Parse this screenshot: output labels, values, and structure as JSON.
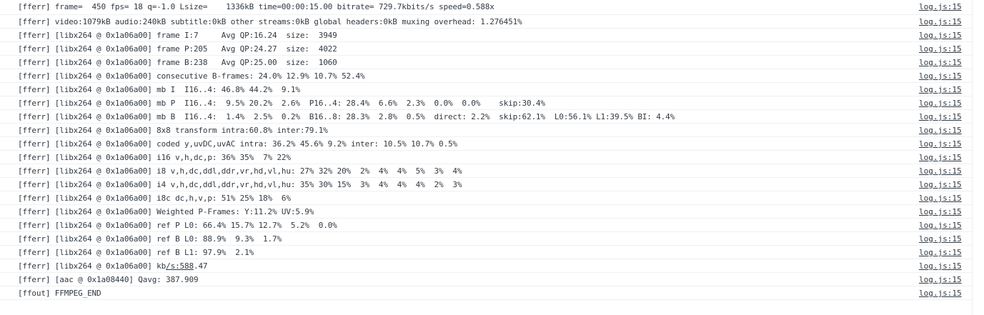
{
  "source_label": "log.js:15",
  "rows": [
    {
      "text": "[fferr] frame=  450 fps= 18 q=-1.0 Lsize=    1336kB time=00:00:15.00 bitrate= 729.7kbits/s speed=0.588x"
    },
    {
      "text": "[fferr] video:1079kB audio:240kB subtitle:0kB other streams:0kB global headers:0kB muxing overhead: 1.276451%"
    },
    {
      "text": "[fferr] [libx264 @ 0x1a06a00] frame I:7     Avg QP:16.24  size:  3949"
    },
    {
      "text": "[fferr] [libx264 @ 0x1a06a00] frame P:205   Avg QP:24.27  size:  4022"
    },
    {
      "text": "[fferr] [libx264 @ 0x1a06a00] frame B:238   Avg QP:25.00  size:  1060"
    },
    {
      "text": "[fferr] [libx264 @ 0x1a06a00] consecutive B-frames: 24.0% 12.9% 10.7% 52.4%"
    },
    {
      "text": "[fferr] [libx264 @ 0x1a06a00] mb I  I16..4: 46.8% 44.2%  9.1%"
    },
    {
      "text": "[fferr] [libx264 @ 0x1a06a00] mb P  I16..4:  9.5% 20.2%  2.6%  P16..4: 28.4%  6.6%  2.3%  0.0%  0.0%    skip:30.4%"
    },
    {
      "text": "[fferr] [libx264 @ 0x1a06a00] mb B  I16..4:  1.4%  2.5%  0.2%  B16..8: 28.3%  2.8%  0.5%  direct: 2.2%  skip:62.1%  L0:56.1% L1:39.5% BI: 4.4%"
    },
    {
      "text": "[fferr] [libx264 @ 0x1a06a00] 8x8 transform intra:60.8% inter:79.1%"
    },
    {
      "text": "[fferr] [libx264 @ 0x1a06a00] coded y,uvDC,uvAC intra: 36.2% 45.6% 9.2% inter: 10.5% 10.7% 0.5%"
    },
    {
      "text": "[fferr] [libx264 @ 0x1a06a00] i16 v,h,dc,p: 36% 35%  7% 22%"
    },
    {
      "text": "[fferr] [libx264 @ 0x1a06a00] i8 v,h,dc,ddl,ddr,vr,hd,vl,hu: 27% 32% 20%  2%  4%  4%  5%  3%  4%"
    },
    {
      "text": "[fferr] [libx264 @ 0x1a06a00] i4 v,h,dc,ddl,ddr,vr,hd,vl,hu: 35% 30% 15%  3%  4%  4%  4%  2%  3%"
    },
    {
      "text": "[fferr] [libx264 @ 0x1a06a00] i8c dc,h,v,p: 51% 25% 18%  6%"
    },
    {
      "text": "[fferr] [libx264 @ 0x1a06a00] Weighted P-Frames: Y:11.2% UV:5.9%"
    },
    {
      "text": "[fferr] [libx264 @ 0x1a06a00] ref P L0: 66.4% 15.7% 12.7%  5.2%  0.0%"
    },
    {
      "text": "[fferr] [libx264 @ 0x1a06a00] ref B L0: 88.9%  9.3%  1.7%"
    },
    {
      "text": "[fferr] [libx264 @ 0x1a06a00] ref B L1: 97.9%  2.1%"
    },
    {
      "text_before": "[fferr] [libx264 @ 0x1a06a00] kb",
      "link": "/s:588",
      "text_after": ".47"
    },
    {
      "text": "[fferr] [aac @ 0x1a08440] Qavg: 387.909"
    },
    {
      "text": "[ffout] FFMPEG_END"
    }
  ]
}
